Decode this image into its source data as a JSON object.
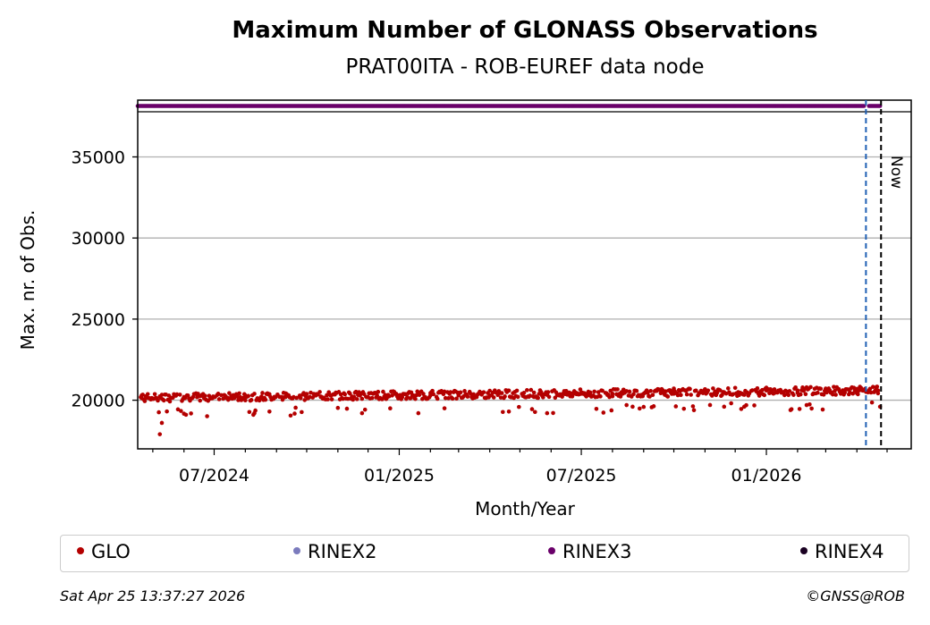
{
  "chart_data": {
    "type": "scatter",
    "title": "Maximum Number of GLONASS Observations",
    "subtitle": "PRAT00ITA - ROB-EUREF data node",
    "xlabel": "Month/Year",
    "ylabel": "Max. nr. of Obs.",
    "x_ticks": [
      "07/2024",
      "01/2025",
      "07/2025",
      "01/2026"
    ],
    "y_ticks": [
      20000,
      25000,
      30000,
      35000
    ],
    "ylim": [
      17000,
      38500
    ],
    "xlim": [
      "2024-04-16",
      "2026-05-25"
    ],
    "grid": "horizontal",
    "now_label": "Now",
    "now_date": "2026-04-25",
    "marker_date": "2026-04-10",
    "series": [
      {
        "name": "GLO",
        "color": "#b40000",
        "approx_points": [
          [
            "2024-04-20",
            20300
          ],
          [
            "2024-05-01",
            20100
          ],
          [
            "2024-05-08",
            17900
          ],
          [
            "2024-05-10",
            18600
          ],
          [
            "2024-06-01",
            20200
          ],
          [
            "2024-07-01",
            20200
          ],
          [
            "2024-08-01",
            20300
          ],
          [
            "2024-08-10",
            19200
          ],
          [
            "2024-08-25",
            19300
          ],
          [
            "2024-09-10",
            20200
          ],
          [
            "2024-10-15",
            20200
          ],
          [
            "2024-11-15",
            20200
          ],
          [
            "2024-11-25",
            19200
          ],
          [
            "2025-01-01",
            20300
          ],
          [
            "2025-01-15",
            20300
          ],
          [
            "2025-01-20",
            19200
          ],
          [
            "2025-02-01",
            20300
          ],
          [
            "2025-02-15",
            19500
          ],
          [
            "2025-03-01",
            20300
          ],
          [
            "2025-04-01",
            20300
          ],
          [
            "2025-04-20",
            19300
          ],
          [
            "2025-05-15",
            20200
          ],
          [
            "2025-05-28",
            19200
          ],
          [
            "2025-07-01",
            20400
          ],
          [
            "2025-08-01",
            20400
          ],
          [
            "2025-08-15",
            19700
          ],
          [
            "2025-09-01",
            20400
          ],
          [
            "2025-10-01",
            20400
          ],
          [
            "2025-11-01",
            20500
          ],
          [
            "2025-11-20",
            19600
          ],
          [
            "2025-12-10",
            19600
          ],
          [
            "2026-01-01",
            20600
          ],
          [
            "2026-02-01",
            20600
          ],
          [
            "2026-02-10",
            19700
          ],
          [
            "2026-03-01",
            20700
          ],
          [
            "2026-04-01",
            20700
          ],
          [
            "2026-04-22",
            20600
          ],
          [
            "2026-04-24",
            19600
          ]
        ]
      },
      {
        "name": "RINEX2",
        "color": "#7b7bbd",
        "approx_points": []
      },
      {
        "name": "RINEX3",
        "color": "#6a006a",
        "y": 38200,
        "range": [
          "2024-04-16",
          "2026-04-24"
        ]
      },
      {
        "name": "RINEX4",
        "color": "#1a0022",
        "approx_points": []
      }
    ]
  },
  "legend": [
    {
      "label": "GLO",
      "color": "#b40000"
    },
    {
      "label": "RINEX2",
      "color": "#7b7bbd"
    },
    {
      "label": "RINEX3",
      "color": "#6a006a"
    },
    {
      "label": "RINEX4",
      "color": "#1a0022"
    }
  ],
  "footer": {
    "timestamp": "Sat Apr 25 13:37:27 2026",
    "credit": "©GNSS@ROB"
  }
}
